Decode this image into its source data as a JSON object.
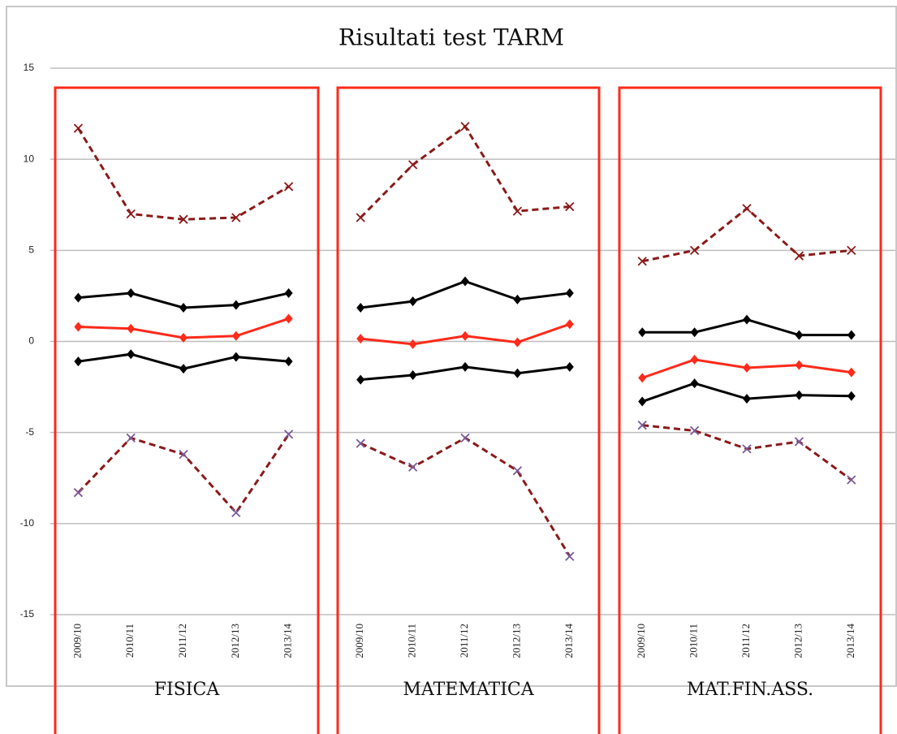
{
  "chart_data": {
    "type": "line",
    "title": "Risultati test TARM",
    "ylim": [
      -15,
      15
    ],
    "yticks": [
      -15,
      -10,
      -5,
      0,
      5,
      10,
      15
    ],
    "grid": true,
    "groups": [
      {
        "label": "FISICA",
        "categories": [
          "2009/10",
          "2010/11",
          "2011/12",
          "2012/13",
          "2013/14"
        ],
        "series": [
          {
            "color": "#8b1a1a",
            "dashed": true,
            "marker": "x",
            "marker_color": "#8b1a1a",
            "values": [
              11.7,
              7.0,
              6.7,
              6.8,
              8.5
            ]
          },
          {
            "color": "#000000",
            "dashed": false,
            "marker": "diamond",
            "marker_color": "#000000",
            "values": [
              2.4,
              2.65,
              1.85,
              2.0,
              2.65
            ]
          },
          {
            "color": "#ff2a1a",
            "dashed": false,
            "marker": "diamond",
            "marker_color": "#ff2a1a",
            "values": [
              0.8,
              0.7,
              0.2,
              0.3,
              1.25
            ]
          },
          {
            "color": "#000000",
            "dashed": false,
            "marker": "diamond",
            "marker_color": "#000000",
            "values": [
              -1.1,
              -0.7,
              -1.5,
              -0.85,
              -1.1
            ]
          },
          {
            "color": "#8b1a1a",
            "dashed": true,
            "marker": "x",
            "marker_color": "#7a5a9a",
            "values": [
              -8.3,
              -5.3,
              -6.2,
              -9.4,
              -5.1
            ]
          }
        ]
      },
      {
        "label": "MATEMATICA",
        "categories": [
          "2009/10",
          "2010/11",
          "2011/12",
          "2012/13",
          "2013/14"
        ],
        "series": [
          {
            "color": "#8b1a1a",
            "dashed": true,
            "marker": "x",
            "marker_color": "#8b1a1a",
            "values": [
              6.8,
              9.7,
              11.8,
              7.15,
              7.4
            ]
          },
          {
            "color": "#000000",
            "dashed": false,
            "marker": "diamond",
            "marker_color": "#000000",
            "values": [
              1.85,
              2.2,
              3.3,
              2.3,
              2.65
            ]
          },
          {
            "color": "#ff2a1a",
            "dashed": false,
            "marker": "diamond",
            "marker_color": "#ff2a1a",
            "values": [
              0.15,
              -0.15,
              0.3,
              -0.05,
              0.95
            ]
          },
          {
            "color": "#000000",
            "dashed": false,
            "marker": "diamond",
            "marker_color": "#000000",
            "values": [
              -2.1,
              -1.85,
              -1.4,
              -1.75,
              -1.4
            ]
          },
          {
            "color": "#8b1a1a",
            "dashed": true,
            "marker": "x",
            "marker_color": "#7a5a9a",
            "values": [
              -5.6,
              -6.9,
              -5.3,
              -7.1,
              -11.8
            ]
          }
        ]
      },
      {
        "label": "MAT.FIN.ASS.",
        "categories": [
          "2009/10",
          "2010/11",
          "2011/12",
          "2012/13",
          "2013/14"
        ],
        "series": [
          {
            "color": "#8b1a1a",
            "dashed": true,
            "marker": "x",
            "marker_color": "#8b1a1a",
            "values": [
              4.4,
              5.0,
              7.3,
              4.7,
              5.0
            ]
          },
          {
            "color": "#000000",
            "dashed": false,
            "marker": "diamond",
            "marker_color": "#000000",
            "values": [
              0.5,
              0.5,
              1.2,
              0.35,
              0.35
            ]
          },
          {
            "color": "#ff2a1a",
            "dashed": false,
            "marker": "diamond",
            "marker_color": "#ff2a1a",
            "values": [
              -2.0,
              -1.0,
              -1.45,
              -1.3,
              -1.7
            ]
          },
          {
            "color": "#000000",
            "dashed": false,
            "marker": "diamond",
            "marker_color": "#000000",
            "values": [
              -3.3,
              -2.3,
              -3.15,
              -2.95,
              -3.0
            ]
          },
          {
            "color": "#8b1a1a",
            "dashed": true,
            "marker": "x",
            "marker_color": "#7a5a9a",
            "values": [
              -4.6,
              -4.9,
              -5.9,
              -5.5,
              -7.6
            ]
          }
        ]
      }
    ]
  }
}
